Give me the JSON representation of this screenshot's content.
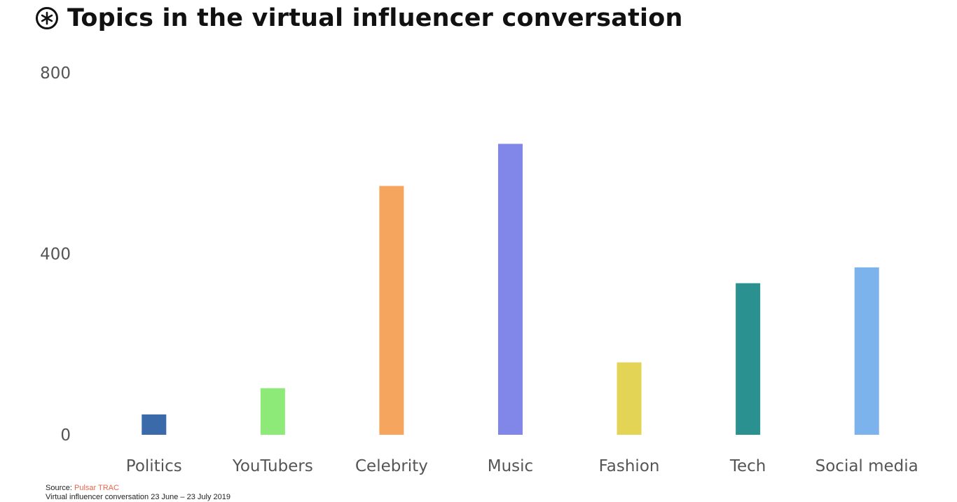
{
  "title": "Topics in the virtual influencer conversation",
  "logo_icon": "pulsar-asterisk-icon",
  "colors": {
    "text": "#111111",
    "axis_text": "#555555",
    "source_accent": "#e5664f"
  },
  "footer": {
    "source_label": "Source:",
    "source_name": "Pulsar TRAC",
    "note": "Virtual influencer conversation 23 June – 23 July 2019"
  },
  "chart_data": {
    "type": "bar",
    "title": "Topics in the virtual influencer conversation",
    "xlabel": "",
    "ylabel": "",
    "ylim": [
      0,
      800
    ],
    "yticks": [
      0,
      400,
      800
    ],
    "grid": false,
    "legend": "none",
    "categories": [
      "Politics",
      "YouTubers",
      "Celebrity",
      "Music",
      "Fashion",
      "Tech",
      "Social media"
    ],
    "values": [
      45,
      103,
      550,
      643,
      160,
      335,
      370
    ],
    "bar_colors": [
      "#3a6aaa",
      "#8eea78",
      "#f5a55d",
      "#8087e8",
      "#e3d455",
      "#2a9190",
      "#7db3ec"
    ]
  }
}
